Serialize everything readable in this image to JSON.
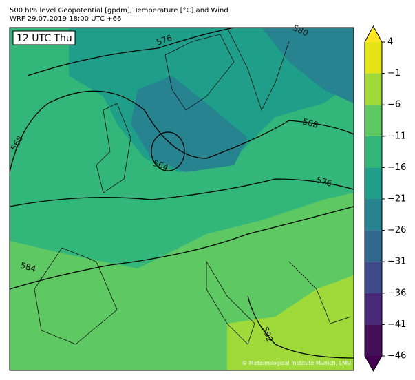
{
  "header": {
    "title": "500 hPa level Geopotential [gpdm], Temperature [°C] and Wind",
    "subtitle": "WRF 29.07.2019 18:00 UTC +66"
  },
  "map": {
    "time_label": "12 UTC Thu",
    "contour_labels": [
      "576",
      "580",
      "568",
      "568",
      "564",
      "576",
      "584",
      "592"
    ],
    "credit": "© Meteorological Institute Munich, LMU"
  },
  "colorbar": {
    "ticks": [
      {
        "value": 4,
        "label": "4"
      },
      {
        "value": -1,
        "label": "−1"
      },
      {
        "value": -6,
        "label": "−6"
      },
      {
        "value": -11,
        "label": "−11"
      },
      {
        "value": -16,
        "label": "−16"
      },
      {
        "value": -21,
        "label": "−21"
      },
      {
        "value": -26,
        "label": "−26"
      },
      {
        "value": -31,
        "label": "−31"
      },
      {
        "value": -36,
        "label": "−36"
      },
      {
        "value": -41,
        "label": "−41"
      },
      {
        "value": -46,
        "label": "−46"
      }
    ],
    "colors": [
      "#e5e419",
      "#9fda3a",
      "#5ec962",
      "#33b679",
      "#1f9e89",
      "#26838f",
      "#31688e",
      "#3e4a89",
      "#482878",
      "#440f57"
    ],
    "extend_high_color": "#fde725",
    "extend_low_color": "#440154"
  }
}
